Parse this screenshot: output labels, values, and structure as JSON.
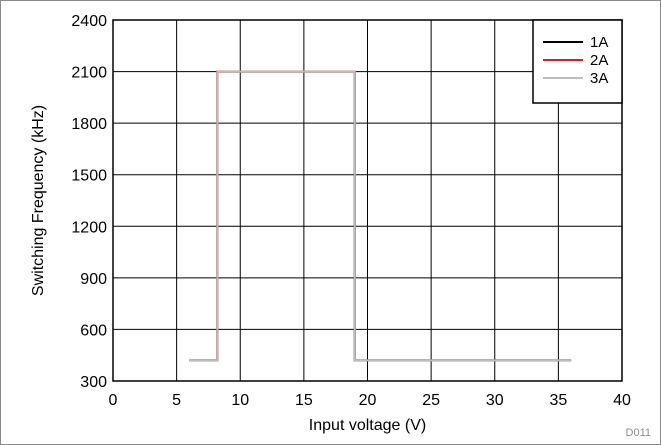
{
  "chart_data": {
    "type": "line",
    "title": "",
    "xlabel": "Input voltage (V)",
    "ylabel": "Switching Frequency (kHz)",
    "xlim": [
      0,
      40
    ],
    "ylim": [
      300,
      2400
    ],
    "xticks": [
      0,
      5,
      10,
      15,
      20,
      25,
      30,
      35,
      40
    ],
    "yticks": [
      300,
      600,
      900,
      1200,
      1500,
      1800,
      2100,
      2400
    ],
    "grid": true,
    "legend_position": "top-right",
    "series": [
      {
        "name": "1A",
        "color": "#000000",
        "x": [
          6,
          8.2,
          8.2,
          19,
          19,
          36
        ],
        "y": [
          420,
          420,
          2100,
          2100,
          420,
          420
        ]
      },
      {
        "name": "2A",
        "color": "#e31a1c",
        "x": [
          6,
          8.2,
          8.2,
          19,
          19,
          36
        ],
        "y": [
          420,
          420,
          2100,
          2100,
          420,
          420
        ]
      },
      {
        "name": "3A",
        "color": "#bdbdbd",
        "x": [
          6,
          8.2,
          8.2,
          19,
          19,
          36
        ],
        "y": [
          420,
          420,
          2100,
          2100,
          420,
          420
        ]
      }
    ],
    "figure_id": "D011"
  }
}
